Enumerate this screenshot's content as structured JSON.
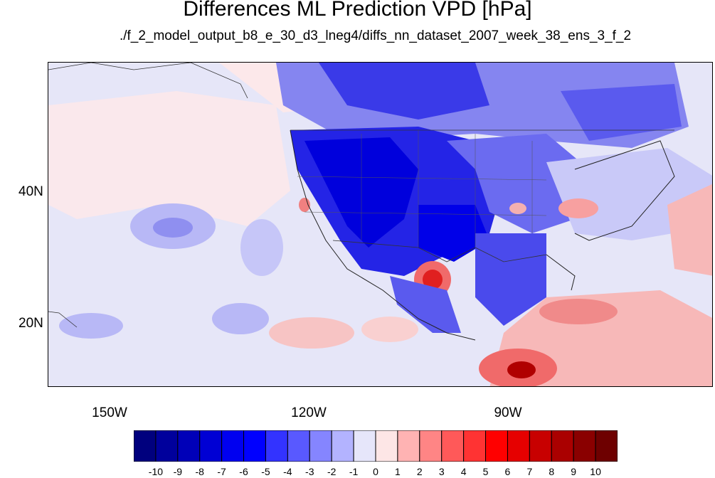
{
  "title": "Differences ML Prediction VPD [hPa]",
  "subtitle": "./f_2_model_output_b8_e_30_d3_lneg4/diffs_nn_dataset_2007_week_38_ens_3_f_2",
  "lat_labels": [
    "40N",
    "20N"
  ],
  "lon_labels": [
    "150W",
    "120W",
    "90W"
  ],
  "colorbar": {
    "labels": [
      "-10",
      "-9",
      "-8",
      "-7",
      "-6",
      "-5",
      "-4",
      "-3",
      "-2",
      "-1",
      "0",
      "1",
      "2",
      "3",
      "4",
      "5",
      "6",
      "7",
      "8",
      "9",
      "10"
    ],
    "colors": [
      "#00007e",
      "#00009c",
      "#0000b8",
      "#0000d4",
      "#0000f0",
      "#0000ff",
      "#3333ff",
      "#5959ff",
      "#8585ff",
      "#b3b3ff",
      "#e6e6fa",
      "#fde6e6",
      "#ffb3b3",
      "#ff8585",
      "#ff5959",
      "#ff3333",
      "#ff0000",
      "#e60000",
      "#c80000",
      "#aa0000",
      "#8a0000"
    ]
  }
}
